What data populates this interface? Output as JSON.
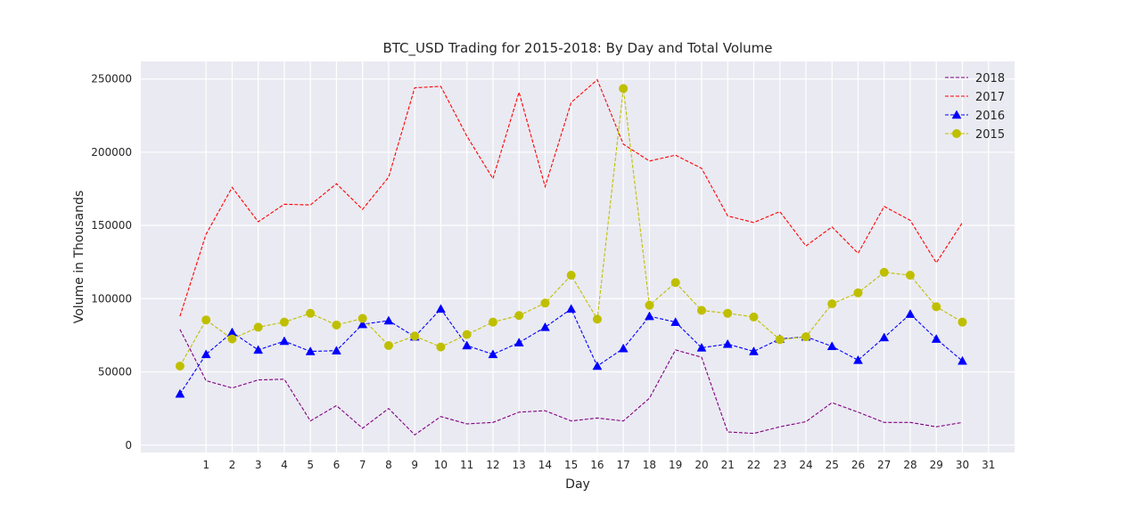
{
  "chart_data": {
    "type": "line",
    "title": "BTC_USD Trading for 2015-2018: By Day and Total Volume",
    "xlabel": "Day",
    "ylabel": "Volume in Thousands",
    "xlim": [
      -1.5,
      32
    ],
    "ylim": [
      -5000,
      262000
    ],
    "x_ticks": [
      1,
      2,
      3,
      4,
      5,
      6,
      7,
      8,
      9,
      10,
      11,
      12,
      13,
      14,
      15,
      16,
      17,
      18,
      19,
      20,
      21,
      22,
      23,
      24,
      25,
      26,
      27,
      28,
      29,
      30,
      31
    ],
    "y_ticks": [
      0,
      50000,
      100000,
      150000,
      200000,
      250000
    ],
    "grid": true,
    "background": "#eaeaf2",
    "legend_position": "top-right",
    "x": [
      0,
      1,
      2,
      3,
      4,
      5,
      6,
      7,
      8,
      9,
      10,
      11,
      12,
      13,
      14,
      15,
      16,
      17,
      18,
      19,
      20,
      21,
      22,
      23,
      24,
      25,
      26,
      27,
      28,
      29,
      30
    ],
    "series": [
      {
        "name": "2018",
        "color": "#800080",
        "linestyle": "dashed",
        "marker": "none",
        "values": [
          79000,
          44000,
          39000,
          44500,
          45000,
          16500,
          27000,
          11500,
          25000,
          7000,
          19500,
          14500,
          15500,
          22500,
          23500,
          16500,
          18500,
          16500,
          32000,
          65000,
          60000,
          9000,
          8000,
          12500,
          16000,
          29000,
          22500,
          15500,
          15500,
          12500,
          15500
        ]
      },
      {
        "name": "2017",
        "color": "#ff0000",
        "linestyle": "dashed",
        "marker": "none",
        "values": [
          88000,
          144000,
          176000,
          152500,
          164500,
          164000,
          178500,
          161000,
          183000,
          244000,
          245000,
          211000,
          182000,
          241000,
          176500,
          234000,
          249500,
          205500,
          194000,
          198000,
          189000,
          156500,
          152000,
          159500,
          136000,
          149000,
          131000,
          163000,
          153500,
          124500,
          152000
        ]
      },
      {
        "name": "2016",
        "color": "#0000ff",
        "linestyle": "dashed",
        "marker": "triangle",
        "values": [
          35000,
          62000,
          77000,
          65000,
          71000,
          64000,
          64500,
          82500,
          85000,
          74000,
          93000,
          68000,
          62000,
          70000,
          80500,
          93000,
          54000,
          66000,
          88000,
          84000,
          66500,
          69000,
          64000,
          72500,
          74000,
          67500,
          58000,
          73500,
          89500,
          72500,
          57500
        ]
      },
      {
        "name": "2015",
        "color": "#bfbf00",
        "linestyle": "dashed",
        "marker": "circle",
        "values": [
          54000,
          85500,
          72500,
          80500,
          84000,
          90000,
          82000,
          86500,
          68000,
          74500,
          67000,
          75500,
          84000,
          88500,
          97000,
          116000,
          86000,
          243500,
          95500,
          111000,
          92000,
          90000,
          87500,
          72000,
          74000,
          96500,
          104000,
          118000,
          116000,
          94500,
          84000
        ]
      }
    ]
  }
}
